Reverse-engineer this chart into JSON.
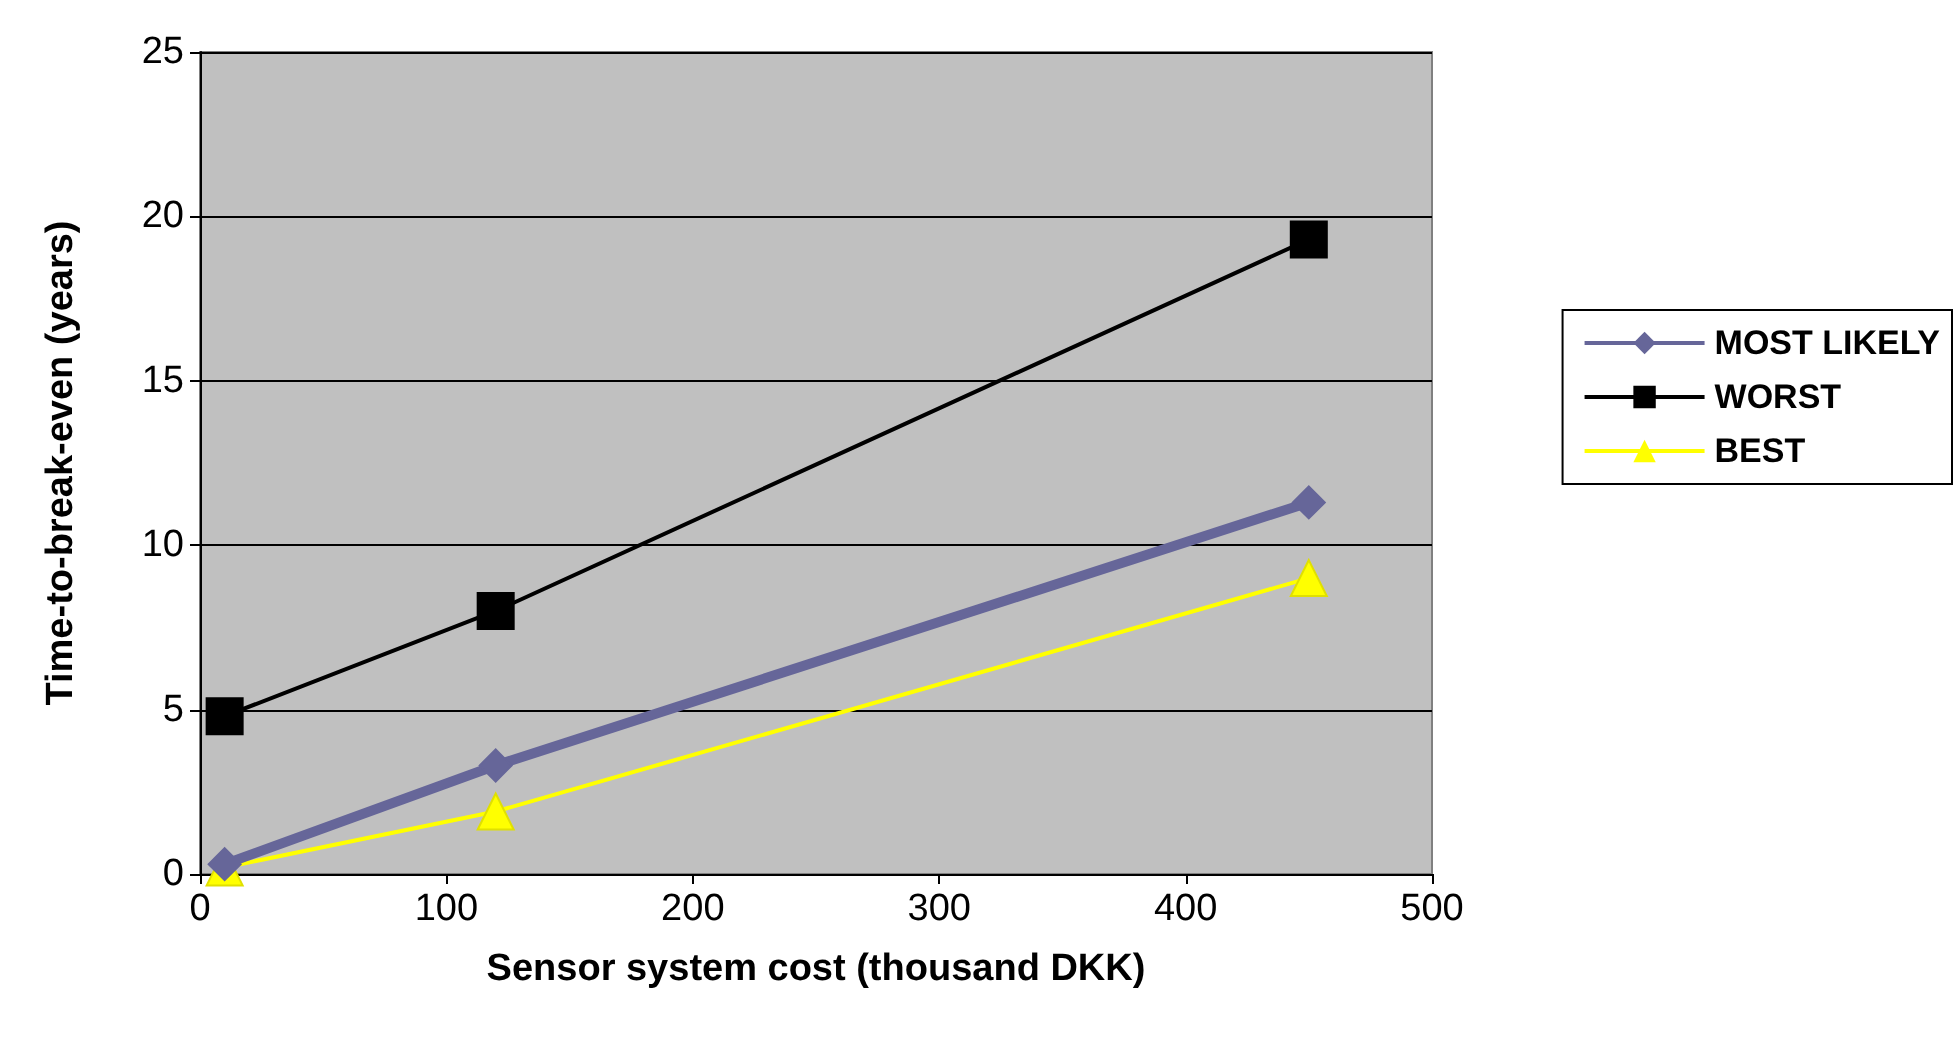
{
  "chart_data": {
    "type": "line",
    "xlabel": "Sensor system cost (thousand DKK)",
    "ylabel": "Time-to-break-even (years)",
    "xlim": [
      0,
      500
    ],
    "xticks": [
      0,
      100,
      200,
      300,
      400,
      500
    ],
    "ylim": [
      0,
      25
    ],
    "yticks": [
      0,
      5,
      10,
      15,
      20,
      25
    ],
    "grid": "y",
    "legend": "right",
    "x": [
      10,
      120,
      450
    ],
    "series": [
      {
        "name": "MOST LIKELY",
        "color": "#666699",
        "marker": "diamond",
        "values": [
          0.3,
          3.3,
          11.3
        ]
      },
      {
        "name": "WORST",
        "color": "#000000",
        "marker": "square",
        "values": [
          4.8,
          8.0,
          19.3
        ]
      },
      {
        "name": "BEST",
        "color": "#ffff00",
        "marker": "triangle",
        "values": [
          0.2,
          1.9,
          9.0
        ]
      }
    ]
  }
}
